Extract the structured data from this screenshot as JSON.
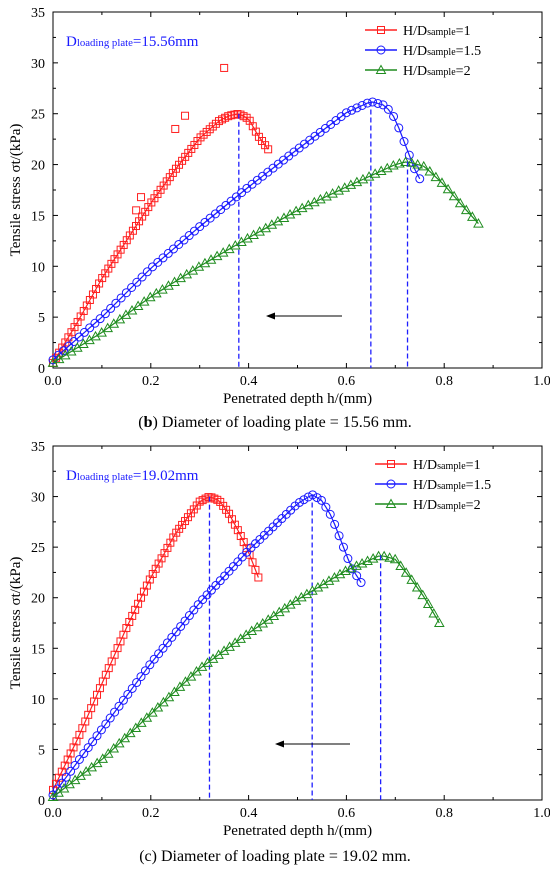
{
  "colors": {
    "red": "#ff2020",
    "blue": "#1a1aff",
    "green": "#1f8c1f",
    "dash": "#1f1fff"
  },
  "charts": [
    {
      "caption_bold": "b",
      "caption_rest": " Diameter of loading plate = 15.56 mm.",
      "annotation_main": "D",
      "annotation_sub": "loading plate",
      "annotation_tail": "=15.56mm",
      "chart_data": {
        "type": "scatter",
        "xlabel": "Penetrated depth h/(mm)",
        "ylabel": "Tensile stress σt/(kPa)",
        "xlim": [
          0,
          1.0
        ],
        "ylim": [
          0,
          35
        ],
        "xticks": [
          "0.0",
          "0.2",
          "0.4",
          "0.6",
          "0.8",
          "1.0"
        ],
        "yticks": [
          "0",
          "5",
          "10",
          "15",
          "20",
          "25",
          "30",
          "35"
        ],
        "legend_position": "top-right",
        "series": [
          {
            "name": "H/Dsample=1",
            "name_main": "H/D",
            "name_sub": "sample",
            "name_tail": "=1",
            "marker": "square",
            "color": "red",
            "peak_x": 0.38,
            "x": [
              0.0,
              0.05,
              0.1,
              0.15,
              0.2,
              0.25,
              0.3,
              0.34,
              0.36,
              0.38,
              0.4,
              0.42,
              0.44
            ],
            "y": [
              0.5,
              4.5,
              8.8,
              12.5,
              16.2,
              19.5,
              22.6,
              24.3,
              24.8,
              25.0,
              24.5,
              22.8,
              21.5
            ],
            "outliers": [
              [
                0.17,
                15.5
              ],
              [
                0.18,
                16.8
              ],
              [
                0.25,
                23.5
              ],
              [
                0.27,
                24.8
              ],
              [
                0.35,
                29.5
              ]
            ]
          },
          {
            "name": "H/Dsample=1.5",
            "name_main": "H/D",
            "name_sub": "sample",
            "name_tail": "=1.5",
            "marker": "circle",
            "color": "blue",
            "peak_x": 0.65,
            "x": [
              0.0,
              0.1,
              0.2,
              0.3,
              0.4,
              0.5,
              0.6,
              0.65,
              0.68,
              0.7,
              0.72,
              0.74,
              0.75
            ],
            "y": [
              0.8,
              5.0,
              9.8,
              13.9,
              17.8,
              21.5,
              25.1,
              26.2,
              25.8,
              24.5,
              22.0,
              19.5,
              18.6
            ]
          },
          {
            "name": "H/Dsample=2",
            "name_main": "H/D",
            "name_sub": "sample",
            "name_tail": "=2",
            "marker": "triangle",
            "color": "green",
            "peak_x": 0.725,
            "x": [
              0.0,
              0.1,
              0.2,
              0.3,
              0.4,
              0.5,
              0.6,
              0.7,
              0.725,
              0.76,
              0.8,
              0.84,
              0.87
            ],
            "y": [
              0.5,
              3.5,
              7.0,
              10.0,
              12.8,
              15.5,
              17.8,
              20.0,
              20.3,
              19.8,
              18.0,
              15.8,
              14.2
            ]
          }
        ]
      }
    },
    {
      "caption_bold": "",
      "caption_rest": "(c) Diameter of loading plate = 19.02 mm.",
      "annotation_main": "D",
      "annotation_sub": "loading plate",
      "annotation_tail": "=19.02mm",
      "chart_data": {
        "type": "scatter",
        "xlabel": "Penetrated depth h/(mm)",
        "ylabel": "Tensile stress σt/(kPa)",
        "xlim": [
          0,
          1.0
        ],
        "ylim": [
          0,
          35
        ],
        "xticks": [
          "0.0",
          "0.2",
          "0.4",
          "0.6",
          "0.8",
          "1.0"
        ],
        "yticks": [
          "0",
          "5",
          "10",
          "15",
          "20",
          "25",
          "30",
          "35"
        ],
        "legend_position": "top-right",
        "series": [
          {
            "name": "H/Dsample=1",
            "name_main": "H/D",
            "name_sub": "sample",
            "name_tail": "=1",
            "marker": "square",
            "color": "red",
            "peak_x": 0.32,
            "x": [
              0.0,
              0.05,
              0.1,
              0.15,
              0.2,
              0.25,
              0.3,
              0.32,
              0.34,
              0.36,
              0.38,
              0.4,
              0.42
            ],
            "y": [
              1.0,
              6.0,
              11.5,
              17.0,
              22.0,
              26.3,
              29.5,
              30.0,
              29.6,
              28.3,
              26.5,
              24.5,
              22.0
            ]
          },
          {
            "name": "H/Dsample=1.5",
            "name_main": "H/D",
            "name_sub": "sample",
            "name_tail": "=1.5",
            "marker": "circle",
            "color": "blue",
            "peak_x": 0.53,
            "x": [
              0.0,
              0.1,
              0.2,
              0.3,
              0.4,
              0.5,
              0.53,
              0.55,
              0.57,
              0.59,
              0.61,
              0.63
            ],
            "y": [
              0.5,
              7.0,
              13.5,
              19.5,
              24.7,
              29.3,
              30.2,
              29.6,
              28.0,
              25.5,
              23.0,
              21.5
            ]
          },
          {
            "name": "H/Dsample=2",
            "name_main": "H/D",
            "name_sub": "sample",
            "name_tail": "=2",
            "marker": "triangle",
            "color": "green",
            "peak_x": 0.67,
            "x": [
              0.0,
              0.1,
              0.2,
              0.3,
              0.4,
              0.5,
              0.6,
              0.67,
              0.7,
              0.73,
              0.76,
              0.79
            ],
            "y": [
              0.3,
              4.0,
              8.5,
              13.0,
              16.5,
              19.8,
              22.7,
              24.2,
              23.8,
              22.0,
              20.0,
              17.5
            ]
          }
        ]
      }
    }
  ]
}
